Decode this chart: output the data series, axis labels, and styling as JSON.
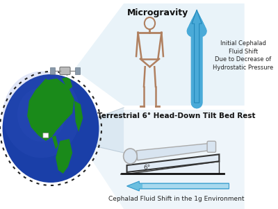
{
  "bg_color": "#ffffff",
  "microgravity_label": "Microgravity",
  "right_label": "Initial Cephalad\nFluid Shift\nDue to Decrease of\nHydrostatic Pressure",
  "terrestrial_label": "Terrestrial 6° Head-Down Tilt Bed Rest",
  "bottom_label": "Cephalad Fluid Shift in the 1g Environment",
  "earth_color_ocean_center": "#1535a0",
  "earth_color_ocean_edge": "#0a2070",
  "earth_color_land": "#1a8a1a",
  "arrow_up_color": "#4aaad8",
  "arrow_left_color": "#6bbfe0",
  "angle_label": "6°",
  "cone_bg_upper": "#d8eaf5",
  "cone_bg_lower": "#daeaf5",
  "body_outline": "#b08060",
  "body_fill": "#e8d8c0",
  "bed_fill": "#e0eaf4",
  "bed_edge": "#333333",
  "person_lying_fill": "#d8e4f0",
  "person_lying_edge": "#aaaaaa"
}
